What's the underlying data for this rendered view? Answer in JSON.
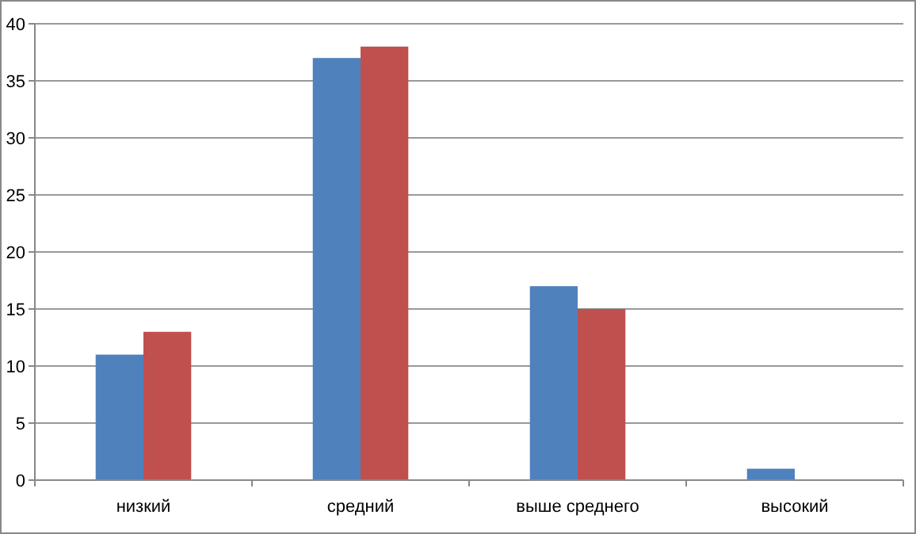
{
  "chart_data": {
    "type": "bar",
    "categories": [
      "низкий",
      "средний",
      "выше среднего",
      "высокий"
    ],
    "series": [
      {
        "color": "#4f81bd",
        "values": [
          11,
          37,
          17,
          1
        ]
      },
      {
        "color": "#c0504d",
        "values": [
          13,
          38,
          15,
          0
        ]
      }
    ],
    "ylim": [
      0,
      40
    ],
    "yticks": [
      0,
      5,
      10,
      15,
      20,
      25,
      30,
      35,
      40
    ],
    "grid": "y"
  }
}
